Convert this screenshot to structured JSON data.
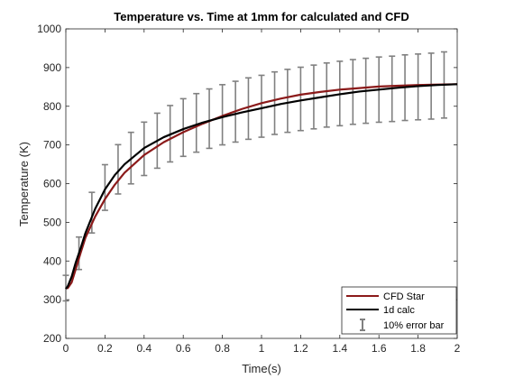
{
  "chart_data": {
    "type": "line",
    "title": "Temperature vs. Time at 1mm for calculated and CFD",
    "xlabel": "Time(s)",
    "ylabel": "Temperature (K)",
    "xlim": [
      0,
      2
    ],
    "ylim": [
      200,
      1000
    ],
    "xticks": [
      0,
      0.2,
      0.4,
      0.6,
      0.8,
      1,
      1.2,
      1.4,
      1.6,
      1.8,
      2
    ],
    "xtick_labels": [
      "0",
      "0.2",
      "0.4",
      "0.6",
      "0.8",
      "1",
      "1.2",
      "1.4",
      "1.6",
      "1.8",
      "2"
    ],
    "yticks": [
      200,
      300,
      400,
      500,
      600,
      700,
      800,
      900,
      1000
    ],
    "ytick_labels": [
      "200",
      "300",
      "400",
      "500",
      "600",
      "700",
      "800",
      "900",
      "1000"
    ],
    "grid": false,
    "legend_position": "bottom-right",
    "series": [
      {
        "name": "CFD Star",
        "color": "#8b1a1a",
        "x": [
          0,
          0.01,
          0.03,
          0.05,
          0.075,
          0.1,
          0.15,
          0.2,
          0.25,
          0.3,
          0.4,
          0.5,
          0.6,
          0.7,
          0.8,
          0.9,
          1.0,
          1.1,
          1.2,
          1.3,
          1.4,
          1.5,
          1.6,
          1.7,
          1.8,
          1.9,
          2.0
        ],
        "y": [
          330,
          330,
          345,
          378,
          420,
          460,
          515,
          560,
          597,
          628,
          674,
          707,
          733,
          755,
          775,
          793,
          808,
          820,
          830,
          837,
          843,
          847,
          851,
          853,
          855,
          856,
          857
        ]
      },
      {
        "name": "1d calc",
        "color": "#000000",
        "x": [
          0,
          0.01,
          0.03,
          0.05,
          0.075,
          0.1,
          0.15,
          0.2,
          0.25,
          0.3,
          0.4,
          0.5,
          0.6,
          0.7,
          0.8,
          0.9,
          1.0,
          1.1,
          1.2,
          1.3,
          1.4,
          1.5,
          1.6,
          1.7,
          1.8,
          1.9,
          2.0
        ],
        "y": [
          328,
          335,
          360,
          395,
          432,
          472,
          535,
          585,
          622,
          650,
          692,
          720,
          741,
          758,
          772,
          784,
          795,
          806,
          815,
          823,
          831,
          838,
          843,
          848,
          852,
          855,
          857
        ]
      }
    ],
    "error_bars": {
      "name": "10% error bar",
      "color": "#808080",
      "x": [
        0,
        0.067,
        0.133,
        0.2,
        0.267,
        0.333,
        0.4,
        0.467,
        0.533,
        0.6,
        0.667,
        0.733,
        0.8,
        0.867,
        0.933,
        1.0,
        1.067,
        1.133,
        1.2,
        1.267,
        1.333,
        1.4,
        1.467,
        1.533,
        1.6,
        1.667,
        1.733,
        1.8,
        1.867,
        1.933
      ],
      "y": [
        330,
        420,
        525,
        590,
        637,
        666,
        690,
        711,
        729,
        745,
        757,
        768,
        778,
        786,
        794,
        800,
        808,
        814,
        819,
        824,
        829,
        833,
        837,
        840,
        843,
        845,
        848,
        850,
        852,
        855
      ],
      "relative_error": 0.1
    },
    "legend": [
      "CFD Star",
      "1d calc",
      "10% error bar"
    ]
  }
}
